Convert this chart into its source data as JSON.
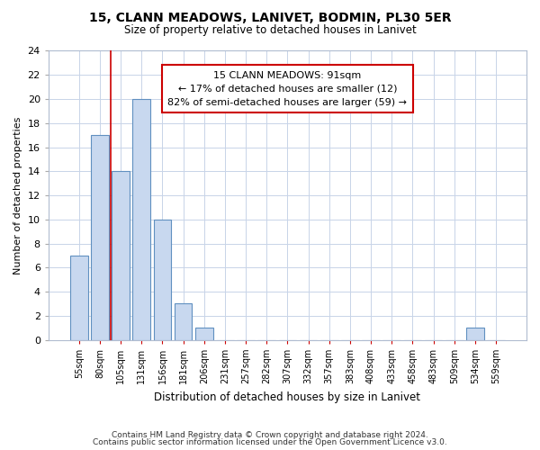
{
  "title1": "15, CLANN MEADOWS, LANIVET, BODMIN, PL30 5ER",
  "title2": "Size of property relative to detached houses in Lanivet",
  "xlabel": "Distribution of detached houses by size in Lanivet",
  "ylabel": "Number of detached properties",
  "categories": [
    "55sqm",
    "80sqm",
    "105sqm",
    "131sqm",
    "156sqm",
    "181sqm",
    "206sqm",
    "231sqm",
    "257sqm",
    "282sqm",
    "307sqm",
    "332sqm",
    "357sqm",
    "383sqm",
    "408sqm",
    "433sqm",
    "458sqm",
    "483sqm",
    "509sqm",
    "534sqm",
    "559sqm"
  ],
  "values": [
    7,
    17,
    14,
    20,
    10,
    3,
    1,
    0,
    0,
    0,
    0,
    0,
    0,
    0,
    0,
    0,
    0,
    0,
    0,
    1,
    0
  ],
  "bar_color": "#c8d8ef",
  "bar_edge_color": "#6090c0",
  "ylim": [
    0,
    24
  ],
  "yticks": [
    0,
    2,
    4,
    6,
    8,
    10,
    12,
    14,
    16,
    18,
    20,
    22,
    24
  ],
  "vline_x": 1.5,
  "vline_color": "#cc0000",
  "annotation_text": "15 CLANN MEADOWS: 91sqm\n← 17% of detached houses are smaller (12)\n82% of semi-detached houses are larger (59) →",
  "ann_box_fc": "#ffffff",
  "ann_box_ec": "#cc0000",
  "footer1": "Contains HM Land Registry data © Crown copyright and database right 2024.",
  "footer2": "Contains public sector information licensed under the Open Government Licence v3.0.",
  "bg_color": "#ffffff",
  "grid_color": "#c8d4e8"
}
